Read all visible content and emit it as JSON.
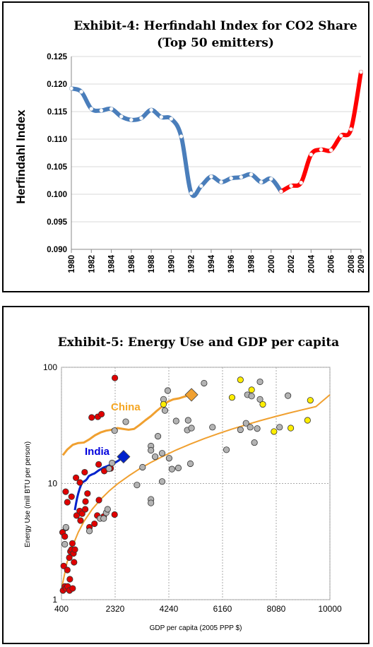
{
  "chart_data": [
    {
      "type": "line",
      "title_line1": "Exhibit-4: Herfindahl Index for CO2 Share",
      "title_line2": "(Top 50 emitters)",
      "ylabel": "Herfindahl Index",
      "xlabel": "",
      "ylim": [
        0.09,
        0.125
      ],
      "xlim": [
        1980,
        2009
      ],
      "y_ticks": [
        "0.090",
        "0.095",
        "0.100",
        "0.105",
        "0.110",
        "0.115",
        "0.120",
        "0.125"
      ],
      "x_ticks": [
        "1980",
        "1982",
        "1984",
        "1986",
        "1988",
        "1990",
        "1992",
        "1994",
        "1996",
        "1998",
        "2000",
        "2002",
        "2004",
        "2006",
        "2008",
        "2009"
      ],
      "x": [
        1980,
        1981,
        1982,
        1983,
        1984,
        1985,
        1986,
        1987,
        1988,
        1989,
        1990,
        1991,
        1992,
        1993,
        1994,
        1995,
        1996,
        1997,
        1998,
        1999,
        2000,
        2001,
        2002,
        2003,
        2004,
        2005,
        2006,
        2007,
        2008,
        2009
      ],
      "values": [
        0.1192,
        0.1186,
        0.1155,
        0.1152,
        0.1155,
        0.1141,
        0.1135,
        0.1138,
        0.1153,
        0.114,
        0.1137,
        0.1105,
        0.1002,
        0.1015,
        0.1032,
        0.1022,
        0.1029,
        0.1031,
        0.1036,
        0.1022,
        0.1028,
        0.1005,
        0.1015,
        0.1021,
        0.1072,
        0.1081,
        0.108,
        0.1106,
        0.1118,
        0.1222
      ],
      "colors": {
        "early": "#4a7ebb",
        "late": "#ff0000"
      },
      "highlight_from_year": 2001,
      "grid": true
    },
    {
      "type": "scatter",
      "title": "Exhibit-5: Energy Use and GDP per capita",
      "xlabel": "GDP per capita (2005 PPP $)",
      "ylabel": "Energy Use (mill BTU per person)",
      "xlim": [
        400,
        10000
      ],
      "ylim": [
        1,
        100
      ],
      "y_scale": "log",
      "x_ticks": [
        "400",
        "2320",
        "4240",
        "6160",
        "8080",
        "10000"
      ],
      "y_ticks": [
        "1",
        "10",
        "100"
      ],
      "grid": true,
      "annotations": [
        {
          "text": "China",
          "color": "#f5a623"
        },
        {
          "text": "India",
          "color": "#0000dd"
        }
      ],
      "colors": {
        "red": "#e00000",
        "gray": "#b3b3b3",
        "yellow": "#ffee00",
        "orange": "#f0a030",
        "blue": "#0022cc"
      },
      "series": [
        {
          "points": [
            [
              455,
              1.2
            ],
            [
              480,
              1.95
            ],
            [
              520,
              1.3
            ],
            [
              560,
              1.25
            ],
            [
              620,
              1.3
            ],
            [
              690,
              1.2
            ],
            [
              610,
              1.8
            ],
            [
              700,
              1.5
            ],
            [
              800,
              1.25
            ],
            [
              680,
              2.3
            ],
            [
              720,
              2.6
            ],
            [
              760,
              2.7
            ],
            [
              830,
              2.5
            ],
            [
              880,
              2.7
            ],
            [
              790,
              3.05
            ],
            [
              850,
              2.1
            ],
            [
              440,
              3.8
            ],
            [
              520,
              3.5
            ],
            [
              560,
              4.15
            ],
            [
              940,
              5.3
            ],
            [
              1050,
              5.8
            ],
            [
              1140,
              5.5
            ],
            [
              1250,
              6.0
            ],
            [
              1330,
              8.2
            ],
            [
              1260,
              7.0
            ],
            [
              1080,
              4.8
            ],
            [
              1400,
              4.2
            ],
            [
              1580,
              4.5
            ],
            [
              1680,
              5.3
            ],
            [
              1740,
              7.2
            ],
            [
              1910,
              5.2
            ],
            [
              2300,
              5.4
            ],
            [
              550,
              8.5
            ],
            [
              610,
              6.9
            ],
            [
              760,
              7.7
            ],
            [
              920,
              11.2
            ],
            [
              1060,
              10.2
            ],
            [
              1230,
              12.5
            ],
            [
              1730,
              14.6
            ],
            [
              1930,
              12.8
            ],
            [
              2160,
              13.5
            ],
            [
              1480,
              37.0
            ],
            [
              1700,
              37.5
            ],
            [
              1830,
              39.5
            ],
            [
              2310,
              81.0
            ]
          ]
        },
        {
          "points": [
            [
              520,
              3.0
            ],
            [
              560,
              4.2
            ],
            [
              1400,
              3.9
            ],
            [
              1780,
              5.0
            ],
            [
              1910,
              5.0
            ],
            [
              2000,
              5.6
            ],
            [
              2050,
              6.0
            ],
            [
              2100,
              13.4
            ],
            [
              2210,
              15.0
            ],
            [
              2300,
              28.5
            ],
            [
              2700,
              34.0
            ],
            [
              3100,
              9.7
            ],
            [
              3300,
              13.8
            ],
            [
              3600,
              7.3
            ],
            [
              3600,
              6.8
            ],
            [
              3600,
              21.0
            ],
            [
              3600,
              19.3
            ],
            [
              3750,
              17.0
            ],
            [
              3850,
              25.5
            ],
            [
              4000,
              10.4
            ],
            [
              4000,
              18.2
            ],
            [
              4050,
              53.0
            ],
            [
              4100,
              42.5
            ],
            [
              4200,
              63.0
            ],
            [
              4250,
              16.5
            ],
            [
              4350,
              13.3
            ],
            [
              4500,
              34.5
            ],
            [
              4580,
              13.6
            ],
            [
              4900,
              28.8
            ],
            [
              4930,
              35.0
            ],
            [
              5010,
              14.8
            ],
            [
              5050,
              30.0
            ],
            [
              5500,
              73.0
            ],
            [
              5800,
              30.5
            ],
            [
              6300,
              19.5
            ],
            [
              6800,
              29.0
            ],
            [
              7000,
              33.0
            ],
            [
              7050,
              58.0
            ],
            [
              7150,
              30.5
            ],
            [
              7200,
              56.5
            ],
            [
              7300,
              22.5
            ],
            [
              7400,
              29.7
            ],
            [
              7500,
              75.0
            ],
            [
              7500,
              53.0
            ],
            [
              8200,
              30.5
            ],
            [
              8500,
              57.0
            ]
          ]
        },
        {
          "points": [
            [
              4050,
              48.0
            ],
            [
              6500,
              55.0
            ],
            [
              6800,
              78.0
            ],
            [
              7200,
              64.0
            ],
            [
              7600,
              48.0
            ],
            [
              8000,
              28.0
            ],
            [
              8600,
              30.0
            ],
            [
              9200,
              35.0
            ],
            [
              9300,
              52.0
            ]
          ]
        },
        {
          "name": "China",
          "type": "line",
          "x": [
            450,
            600,
            800,
            1000,
            1200,
            1400,
            1600,
            1800,
            2000,
            2200,
            2400,
            2600,
            2800,
            3000,
            3200,
            3400,
            3600,
            3800,
            4000,
            4200,
            4400,
            4600,
            4800,
            5050
          ],
          "values": [
            17.5,
            19.5,
            21.5,
            22.3,
            22.5,
            24.0,
            26.0,
            27.5,
            28.5,
            29.0,
            30.0,
            29.5,
            29.0,
            29.5,
            32.0,
            35.0,
            38.0,
            42.0,
            46.0,
            50.5,
            53.0,
            54.0,
            56.0,
            58.0
          ]
        },
        {
          "name": "India",
          "type": "line",
          "x": [
            880,
            920,
            960,
            1000,
            1050,
            1100,
            1150,
            1200,
            1260,
            1320,
            1380,
            1440,
            1500,
            1580,
            1660,
            1740,
            1820,
            1900,
            2000,
            2100,
            2200,
            2300,
            2450,
            2620
          ],
          "values": [
            5.9,
            6.7,
            7.5,
            8.2,
            9.0,
            9.7,
            10.2,
            10.4,
            10.6,
            11.0,
            11.6,
            11.8,
            12.0,
            12.2,
            12.6,
            13.0,
            13.3,
            13.7,
            14.0,
            14.3,
            14.7,
            15.0,
            15.8,
            17.0
          ]
        },
        {
          "name": "Trend",
          "type": "line",
          "x": [
            420,
            600,
            800,
            1000,
            1200,
            1500,
            1800,
            2100,
            2400,
            2800,
            3200,
            3600,
            4000,
            4500,
            5000,
            5500,
            6000,
            6500,
            7000,
            7500,
            8000,
            8500,
            9000,
            9500,
            10000
          ],
          "values": [
            1.3,
            2.1,
            2.9,
            3.8,
            4.7,
            6.0,
            7.3,
            8.6,
            9.9,
            11.6,
            13.4,
            15.2,
            17.0,
            19.4,
            21.8,
            24.3,
            26.8,
            29.4,
            32.0,
            34.7,
            37.4,
            40.2,
            43.0,
            45.9,
            58.0
          ]
        }
      ],
      "markers": [
        {
          "label": "China",
          "x": 5050,
          "y": 58.0
        },
        {
          "label": "India",
          "x": 2620,
          "y": 17.0
        }
      ]
    }
  ]
}
